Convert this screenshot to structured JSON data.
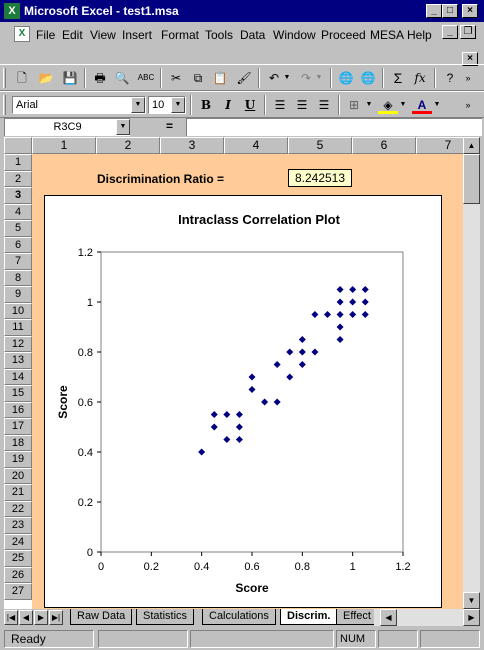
{
  "window": {
    "title": "Microsoft Excel - test1.msa",
    "minimize": "_",
    "maximize": "□",
    "close": "×",
    "app_icon": "X"
  },
  "menubar": {
    "items": [
      "File",
      "Edit",
      "View",
      "Insert",
      "Format",
      "Tools",
      "Data",
      "Window",
      "Proceed",
      "MESA",
      "Help"
    ],
    "restore": "❐",
    "close": "×"
  },
  "format_toolbar": {
    "font": "Arial",
    "size": "10",
    "bold": "B",
    "italic": "I",
    "underline": "U"
  },
  "formula_bar": {
    "name_box": "R3C9",
    "equals": "=",
    "content": ""
  },
  "columns": [
    "1",
    "2",
    "3",
    "4",
    "5",
    "6",
    "7"
  ],
  "rows": [
    "1",
    "2",
    "3",
    "4",
    "5",
    "6",
    "7",
    "8",
    "9",
    "10",
    "11",
    "12",
    "13",
    "14",
    "15",
    "16",
    "17",
    "18",
    "19",
    "20",
    "21",
    "22",
    "23",
    "24",
    "25",
    "26",
    "27"
  ],
  "selected_row": "3",
  "discrimination": {
    "label": "Discrimination Ratio =",
    "value": "8.242513"
  },
  "chart_data": {
    "type": "scatter",
    "title": "Intraclass Correlation Plot",
    "xlabel": "Score",
    "ylabel": "Score",
    "xlim": [
      0,
      1.2
    ],
    "ylim": [
      0,
      1.2
    ],
    "x_ticks": [
      "0",
      "0.2",
      "0.4",
      "0.6",
      "0.8",
      "1",
      "1.2"
    ],
    "y_ticks": [
      "0",
      "0.2",
      "0.4",
      "0.6",
      "0.8",
      "1",
      "1.2"
    ],
    "marker_color": "#000080",
    "points": [
      [
        0.4,
        0.4
      ],
      [
        0.45,
        0.5
      ],
      [
        0.45,
        0.55
      ],
      [
        0.5,
        0.45
      ],
      [
        0.5,
        0.55
      ],
      [
        0.55,
        0.45
      ],
      [
        0.55,
        0.5
      ],
      [
        0.55,
        0.55
      ],
      [
        0.6,
        0.65
      ],
      [
        0.6,
        0.7
      ],
      [
        0.65,
        0.6
      ],
      [
        0.7,
        0.6
      ],
      [
        0.7,
        0.75
      ],
      [
        0.75,
        0.7
      ],
      [
        0.75,
        0.8
      ],
      [
        0.8,
        0.75
      ],
      [
        0.8,
        0.8
      ],
      [
        0.8,
        0.85
      ],
      [
        0.85,
        0.8
      ],
      [
        0.85,
        0.95
      ],
      [
        0.9,
        0.95
      ],
      [
        0.95,
        0.85
      ],
      [
        0.95,
        0.9
      ],
      [
        0.95,
        0.95
      ],
      [
        0.95,
        1.0
      ],
      [
        0.95,
        1.05
      ],
      [
        1.0,
        0.95
      ],
      [
        1.0,
        1.0
      ],
      [
        1.0,
        1.05
      ],
      [
        1.05,
        0.95
      ],
      [
        1.05,
        1.0
      ],
      [
        1.05,
        1.05
      ]
    ]
  },
  "sheet_tabs": [
    "Raw Data",
    "Statistics",
    "Calculations",
    "Discrim.",
    "Effect"
  ],
  "active_tab": "Discrim.",
  "status": {
    "ready": "Ready",
    "num": "NUM"
  },
  "colors": {
    "titlebar": "#000080",
    "sheet_bg": "#ffcc99",
    "value_bg": "#ffffcc",
    "marker": "#000080"
  }
}
